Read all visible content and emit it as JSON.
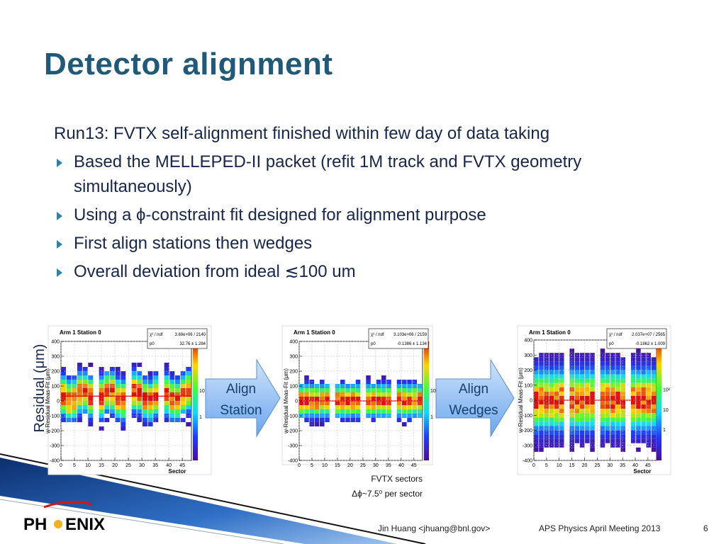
{
  "header": {
    "title": "Detector alignment"
  },
  "body": {
    "intro": "Run13: FVTX self-alignment finished within few day of data taking",
    "bullets": [
      "Based the MELLEPED-II packet (refit 1M track and FVTX geometry simultaneously)",
      "Using a ϕ-constraint fit designed for alignment purpose",
      "First align stations then wedges",
      "Overall deviation from ideal ≲100 um"
    ]
  },
  "figure": {
    "y_label": "Residual (μm)",
    "plots": [
      {
        "title": "Arm 1 Station 0",
        "chi2_label": "χ² / ndf",
        "chi2": "3.69e+06 / 2140",
        "p0_label": "p0",
        "p0": "32.76 ± 1.284",
        "y_axis_label": "w-Residual Meas-Fit (μm)",
        "x_axis_label": "Sector",
        "yticks": [
          -400,
          -300,
          -200,
          -100,
          0,
          100,
          200,
          300,
          400
        ],
        "xticks": [
          0,
          5,
          10,
          15,
          20,
          25,
          30,
          35,
          40,
          45
        ],
        "zticks": [
          "10",
          "1"
        ]
      },
      {
        "title": "Arm 1 Station 0",
        "chi2_label": "χ² / ndf",
        "chi2": "3.103e+06 / 2159",
        "p0_label": "p0",
        "p0": "-0.1386 ± 1.134",
        "y_axis_label": "w-Residual Meas-Fit (μm)",
        "yticks": [
          -400,
          -300,
          -200,
          -100,
          0,
          100,
          200,
          300,
          400
        ],
        "xticks": [
          0,
          5,
          10,
          15,
          20,
          25,
          30,
          35,
          40,
          45
        ],
        "zticks": [
          "10",
          "1"
        ]
      },
      {
        "title": "Arm 1 Station 0",
        "chi2_label": "χ² / ndf",
        "chi2": "2.037e+07 / 2565",
        "p0_label": "p0",
        "p0": "-0.1862 ± 1.009",
        "y_axis_label": "w-Residual Meas-Fit (μm)",
        "x_axis_label": "Sector",
        "yticks": [
          -400,
          -300,
          -200,
          -100,
          0,
          100,
          200,
          300,
          400
        ],
        "xticks": [
          0,
          5,
          10,
          15,
          20,
          25,
          30,
          35,
          40,
          45
        ],
        "zticks": [
          "10²",
          "10",
          "1"
        ]
      }
    ],
    "arrows": [
      [
        "Align",
        "Station"
      ],
      [
        "Align",
        "Wedges"
      ]
    ],
    "caption": [
      "FVTX sectors",
      "Δϕ~7.5⁰ per sector"
    ]
  },
  "footer": {
    "logo": [
      "PH",
      "ENIX"
    ],
    "author": "Jin Huang <jhuang@bnl.gov>",
    "event": "APS Physics April Meeting 2013",
    "page": "6"
  }
}
